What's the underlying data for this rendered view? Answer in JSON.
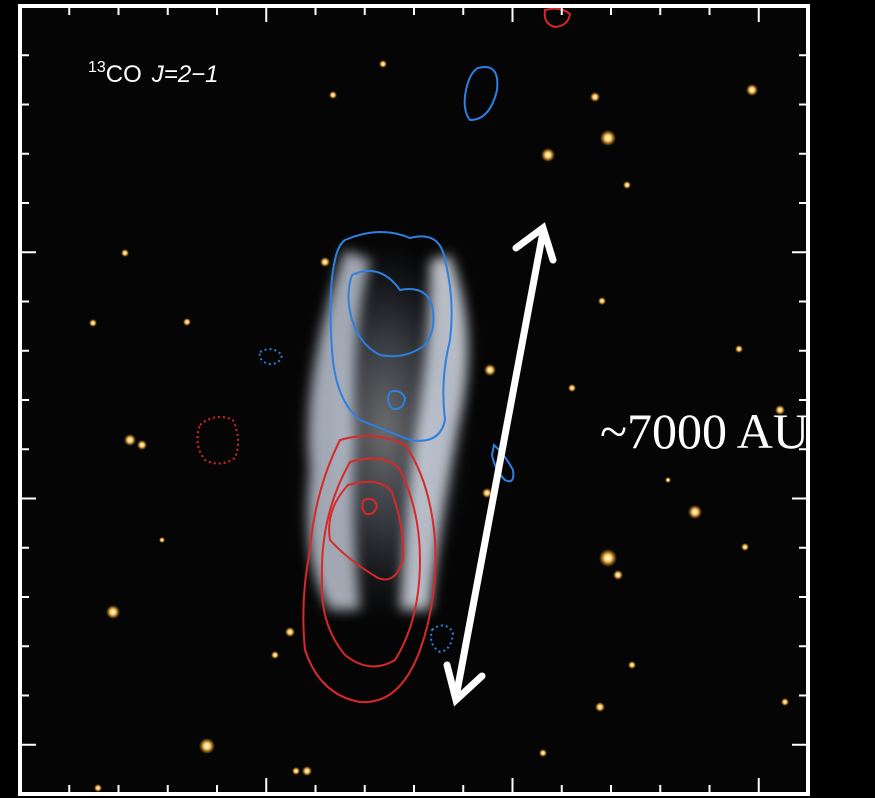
{
  "panel": {
    "label": {
      "isotope": "13",
      "molecule": "CO",
      "transition": "J=2−1"
    }
  },
  "annotation": {
    "scale": "~7000 AU"
  }
}
